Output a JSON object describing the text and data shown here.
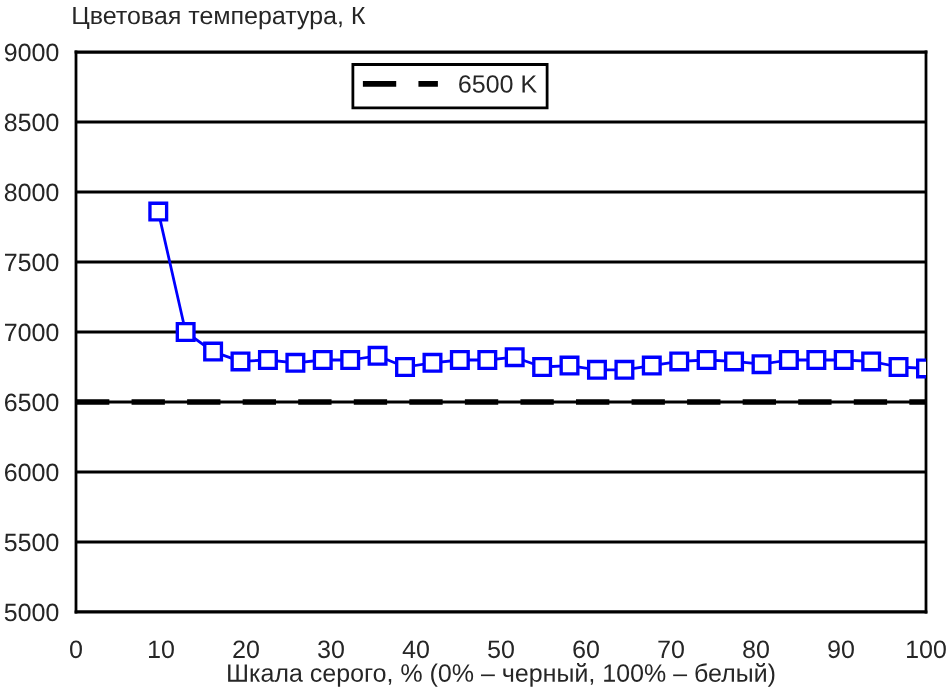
{
  "chart_data": {
    "type": "line",
    "ylabel": "Цветовая температура, К",
    "xlabel": "Шкала серого, % (0% – черный, 100% – белый)",
    "x": [
      9.68,
      12.9,
      16.13,
      19.35,
      22.58,
      25.81,
      29.03,
      32.26,
      35.48,
      38.71,
      41.94,
      45.16,
      48.39,
      51.61,
      54.84,
      58.06,
      61.29,
      64.52,
      67.74,
      70.97,
      74.19,
      77.42,
      80.65,
      83.87,
      87.1,
      90.32,
      93.55,
      96.77,
      100
    ],
    "series": [
      {
        "color": "#0000ff",
        "values": [
          7860,
          7000,
          6860,
          6790,
          6800,
          6780,
          6800,
          6800,
          6830,
          6750,
          6780,
          6800,
          6800,
          6820,
          6750,
          6760,
          6730,
          6730,
          6760,
          6790,
          6800,
          6790,
          6770,
          6800,
          6800,
          6800,
          6790,
          6750,
          6740
        ]
      }
    ],
    "ref_lines": [
      {
        "axis": "y",
        "value": 6500,
        "label": "6500 K",
        "color": "#000000",
        "line_style": "dashed"
      }
    ],
    "xlim": [
      0,
      100
    ],
    "xticks": [
      0,
      10,
      20,
      30,
      40,
      50,
      60,
      70,
      80,
      90,
      100
    ],
    "ylim": [
      5000,
      9000
    ],
    "yticks": [
      5000,
      5500,
      6000,
      6500,
      7000,
      7500,
      8000,
      8500,
      9000
    ],
    "grid": "y",
    "legend": "top",
    "marker": "square",
    "line_style": "solid"
  }
}
